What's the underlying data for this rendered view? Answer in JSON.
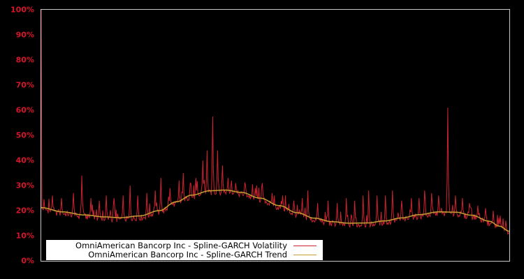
{
  "window": {
    "background": "#000000"
  },
  "chart_data": {
    "type": "line",
    "title": "",
    "x_axis": {
      "tick_labels": [],
      "grid": false
    },
    "y_axis": {
      "min": 0,
      "max": 100,
      "tick_step": 10,
      "ticks": [
        "0%",
        "10%",
        "20%",
        "30%",
        "40%",
        "50%",
        "60%",
        "70%",
        "80%",
        "90%",
        "100%"
      ],
      "label_color": "#d5152a",
      "grid": false
    },
    "plot": {
      "background": "#000000",
      "border_color": "#c8c8c8"
    },
    "legend": {
      "position": "bottom-left-inside",
      "background": "#ffffff",
      "text_color": "#000000"
    },
    "series": [
      {
        "name": "OmniAmerican Bancorp Inc - Spline-GARCH Volatility",
        "color": "#cd2330",
        "style": "noisy-line"
      },
      {
        "name": "OmniAmerican Bancorp Inc - Spline-GARCH Trend",
        "color": "#c4a032",
        "style": "smooth-line"
      }
    ],
    "trend_points": [
      [
        0.0,
        21.2
      ],
      [
        0.046,
        19.5
      ],
      [
        0.091,
        18.3
      ],
      [
        0.136,
        17.5
      ],
      [
        0.169,
        17.2
      ],
      [
        0.21,
        17.9
      ],
      [
        0.252,
        20.0
      ],
      [
        0.288,
        23.5
      ],
      [
        0.322,
        26.2
      ],
      [
        0.36,
        27.9
      ],
      [
        0.393,
        28.2
      ],
      [
        0.427,
        27.3
      ],
      [
        0.467,
        25.0
      ],
      [
        0.509,
        22.0
      ],
      [
        0.546,
        19.2
      ],
      [
        0.584,
        17.0
      ],
      [
        0.621,
        15.6
      ],
      [
        0.658,
        15.0
      ],
      [
        0.696,
        15.1
      ],
      [
        0.733,
        15.9
      ],
      [
        0.77,
        17.1
      ],
      [
        0.807,
        18.4
      ],
      [
        0.849,
        19.5
      ],
      [
        0.885,
        19.4
      ],
      [
        0.919,
        18.2
      ],
      [
        0.957,
        15.8
      ],
      [
        0.979,
        13.8
      ],
      [
        1.0,
        11.8
      ]
    ],
    "volatility": {
      "samples": 670,
      "first_point_pct": 100,
      "baseline_offset_pct": -0.7,
      "noise_amplitude_pct": 1.2,
      "minor_spike_probability": 0.13,
      "minor_spike_max_pct": 5,
      "major_spikes": [
        [
          0.024,
          26
        ],
        [
          0.043,
          25
        ],
        [
          0.069,
          27
        ],
        [
          0.087,
          34
        ],
        [
          0.106,
          25
        ],
        [
          0.124,
          24
        ],
        [
          0.139,
          26
        ],
        [
          0.155,
          25
        ],
        [
          0.175,
          26
        ],
        [
          0.19,
          30
        ],
        [
          0.207,
          26
        ],
        [
          0.225,
          27
        ],
        [
          0.243,
          28
        ],
        [
          0.255,
          33
        ],
        [
          0.275,
          29
        ],
        [
          0.294,
          32
        ],
        [
          0.304,
          35
        ],
        [
          0.318,
          31
        ],
        [
          0.33,
          33
        ],
        [
          0.345,
          40
        ],
        [
          0.354,
          44
        ],
        [
          0.366,
          57.5
        ],
        [
          0.376,
          44
        ],
        [
          0.387,
          38
        ],
        [
          0.399,
          33
        ],
        [
          0.416,
          31
        ],
        [
          0.437,
          30
        ],
        [
          0.458,
          29
        ],
        [
          0.472,
          31
        ],
        [
          0.494,
          27
        ],
        [
          0.516,
          26
        ],
        [
          0.539,
          24
        ],
        [
          0.557,
          25
        ],
        [
          0.57,
          28
        ],
        [
          0.591,
          23
        ],
        [
          0.613,
          24
        ],
        [
          0.633,
          23
        ],
        [
          0.651,
          25
        ],
        [
          0.67,
          24
        ],
        [
          0.688,
          26
        ],
        [
          0.7,
          28
        ],
        [
          0.718,
          26
        ],
        [
          0.736,
          26
        ],
        [
          0.751,
          28
        ],
        [
          0.77,
          24
        ],
        [
          0.79,
          25
        ],
        [
          0.807,
          25
        ],
        [
          0.819,
          28
        ],
        [
          0.834,
          27
        ],
        [
          0.849,
          26
        ],
        [
          0.869,
          61
        ],
        [
          0.885,
          26
        ],
        [
          0.9,
          25
        ],
        [
          0.915,
          23
        ],
        [
          0.933,
          22
        ],
        [
          0.949,
          21
        ],
        [
          0.966,
          20
        ],
        [
          0.981,
          18
        ],
        [
          0.993,
          16
        ]
      ]
    }
  }
}
